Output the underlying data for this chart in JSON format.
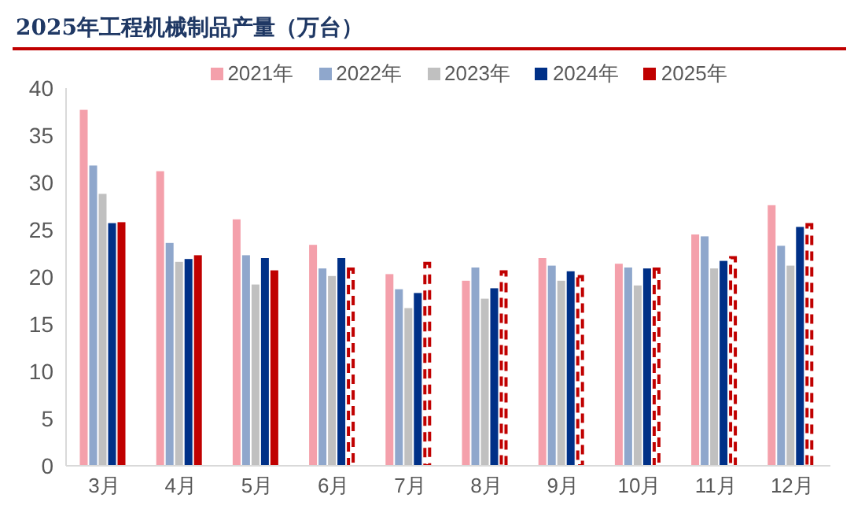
{
  "chart_data": {
    "type": "bar",
    "title": "2025年工程机械制品产量（万台）",
    "categories": [
      "3月",
      "4月",
      "5月",
      "6月",
      "7月",
      "8月",
      "9月",
      "10月",
      "11月",
      "12月"
    ],
    "series": [
      {
        "name": "2021年",
        "color": "#f4a0ab",
        "values": [
          37.7,
          31.2,
          26.1,
          23.4,
          20.3,
          19.6,
          22.0,
          21.4,
          24.5,
          27.6
        ]
      },
      {
        "name": "2022年",
        "color": "#8fa7cc",
        "values": [
          31.8,
          23.6,
          22.3,
          20.9,
          18.7,
          21.0,
          21.2,
          21.0,
          24.3,
          23.3
        ]
      },
      {
        "name": "2023年",
        "color": "#c0c0c0",
        "values": [
          28.8,
          21.6,
          19.2,
          20.1,
          16.7,
          17.7,
          19.6,
          19.1,
          20.9,
          21.2
        ]
      },
      {
        "name": "2024年",
        "color": "#003087",
        "values": [
          25.7,
          21.9,
          22.0,
          22.0,
          18.3,
          18.8,
          20.6,
          20.9,
          21.7,
          25.3
        ]
      },
      {
        "name": "2025年",
        "color": "#c00000",
        "values": [
          25.8,
          22.3,
          20.7,
          null,
          null,
          null,
          null,
          null,
          null,
          null
        ]
      },
      {
        "color": "#c00000",
        "line_style": "dashed",
        "values": [
          null,
          null,
          null,
          21.0,
          21.6,
          20.7,
          20.2,
          21.0,
          22.2,
          25.7
        ]
      }
    ],
    "ylim": [
      0,
      40
    ],
    "yticks": [
      0,
      5,
      10,
      15,
      20,
      25,
      30,
      35,
      40
    ],
    "legend": "top"
  }
}
